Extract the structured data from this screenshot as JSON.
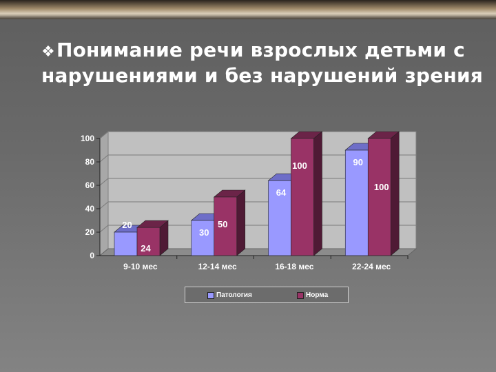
{
  "title": {
    "bullet": "❖",
    "line1": "Понимание речи взрослых детьми с",
    "line2": "нарушениями и без нарушений зрения"
  },
  "colors": {
    "series1_front": "#9999ff",
    "series1_top": "#6e6ec8",
    "series1_side": "#5a5aa8",
    "series2_front": "#993366",
    "series2_top": "#6b2448",
    "series2_side": "#4f1a35",
    "plot_back": "#c0c0c0",
    "plot_side": "#a8a8a8",
    "plot_floor": "#8c8c8c"
  },
  "chart_data": {
    "type": "bar",
    "categories": [
      "9-10 мес",
      "12-14 мес",
      "16-18 мес",
      "22-24 мес"
    ],
    "series": [
      {
        "name": "Патология",
        "values": [
          20,
          30,
          64,
          90
        ]
      },
      {
        "name": "Норма",
        "values": [
          24,
          50,
          100,
          100
        ]
      }
    ],
    "ylim": [
      0,
      100
    ],
    "yticks": [
      "0",
      "20",
      "40",
      "60",
      "80",
      "100"
    ],
    "grid": true,
    "legend": "bottom"
  }
}
